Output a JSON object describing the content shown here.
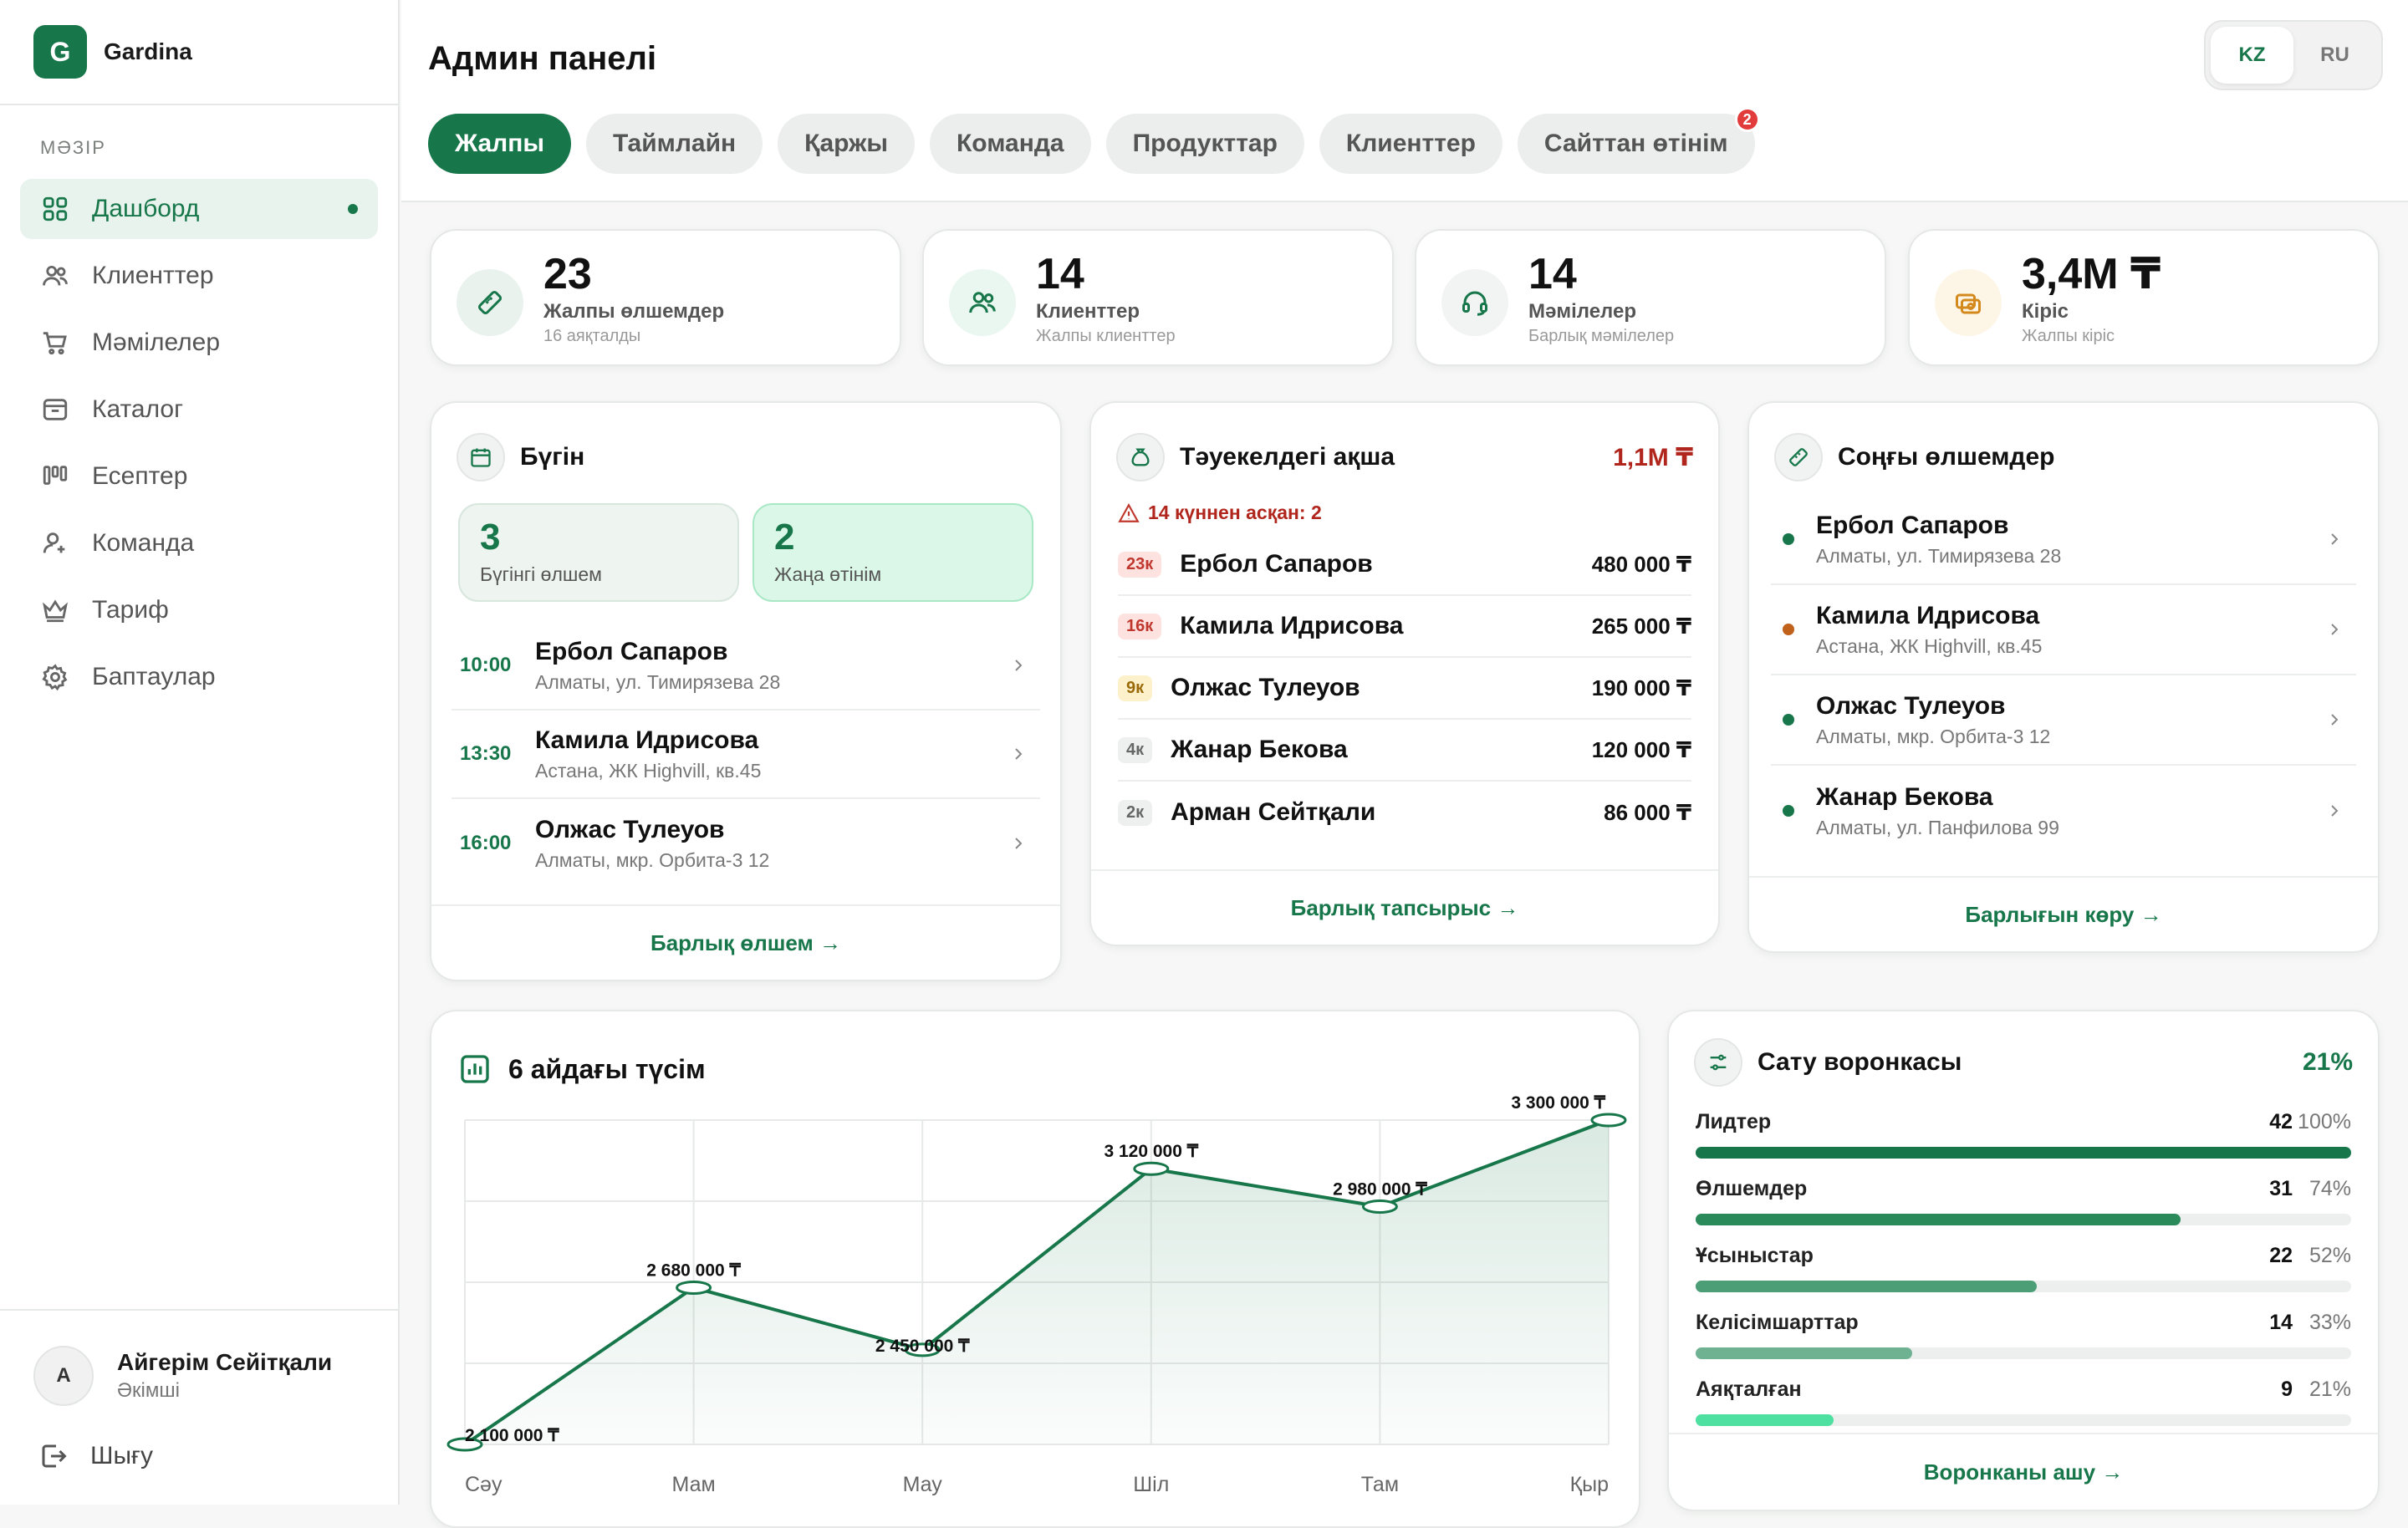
{
  "brand": {
    "initial": "G",
    "name": "Gardina"
  },
  "sidebar": {
    "caption": "МӘЗІР",
    "items": [
      {
        "label": "Дашборд",
        "icon": "dashboard-icon"
      },
      {
        "label": "Клиенттер",
        "icon": "users-icon"
      },
      {
        "label": "Мәмілелер",
        "icon": "cart-icon"
      },
      {
        "label": "Каталог",
        "icon": "catalog-icon"
      },
      {
        "label": "Есептер",
        "icon": "reports-icon"
      },
      {
        "label": "Команда",
        "icon": "team-icon"
      },
      {
        "label": "Тариф",
        "icon": "crown-icon"
      },
      {
        "label": "Баптаулар",
        "icon": "gear-icon"
      }
    ],
    "user": {
      "initial": "А",
      "name": "Айгерім Сейітқали",
      "role": "Әкімші"
    },
    "logout": "Шығу"
  },
  "header": {
    "title": "Админ панелі",
    "lang": [
      "KZ",
      "RU"
    ],
    "tabs": [
      {
        "label": "Жалпы"
      },
      {
        "label": "Таймлайн"
      },
      {
        "label": "Қаржы"
      },
      {
        "label": "Команда"
      },
      {
        "label": "Продукттар"
      },
      {
        "label": "Клиенттер"
      },
      {
        "label": "Сайттан өтінім",
        "badge": "2"
      }
    ]
  },
  "stats": [
    {
      "value": "23",
      "label": "Жалпы өлшемдер",
      "sub": "16 аяқталды",
      "icon": "ruler-icon"
    },
    {
      "value": "14",
      "label": "Клиенттер",
      "sub": "Жалпы клиенттер",
      "icon": "users-icon"
    },
    {
      "value": "14",
      "label": "Мәмілелер",
      "sub": "Барлық мәмілелер",
      "icon": "headset-icon"
    },
    {
      "value": "3,4M ₸",
      "label": "Кіріс",
      "sub": "Жалпы кіріс",
      "icon": "money-icon"
    }
  ],
  "today": {
    "title": "Бүгін",
    "boxes": [
      {
        "value": "3",
        "label": "Бүгінгі өлшем"
      },
      {
        "value": "2",
        "label": "Жаңа өтінім"
      }
    ],
    "rows": [
      {
        "time": "10:00",
        "name": "Ербол Сапаров",
        "addr": "Алматы, ул. Тимирязева 28"
      },
      {
        "time": "13:30",
        "name": "Камила Идрисова",
        "addr": "Астана, ЖК Highvill, кв.45"
      },
      {
        "time": "16:00",
        "name": "Олжас Тулеуов",
        "addr": "Алматы, мкр. Орбита-3 12"
      }
    ],
    "footer": "Барлық өлшем →"
  },
  "risk": {
    "title": "Тәуекелдегі ақша",
    "total": "1,1M ₸",
    "warning": "14 күннен асқан: 2",
    "rows": [
      {
        "badge": "23к",
        "name": "Ербол Сапаров",
        "amount": "480 000 ₸",
        "level": "high"
      },
      {
        "badge": "16к",
        "name": "Камила Идрисова",
        "amount": "265 000 ₸",
        "level": "high"
      },
      {
        "badge": "9к",
        "name": "Олжас Тулеуов",
        "amount": "190 000 ₸",
        "level": "mid"
      },
      {
        "badge": "4к",
        "name": "Жанар Бекова",
        "amount": "120 000 ₸",
        "level": "low"
      },
      {
        "badge": "2к",
        "name": "Арман Сейтқали",
        "amount": "86 000 ₸",
        "level": "low"
      }
    ],
    "footer": "Барлық тапсырыс →"
  },
  "recent": {
    "title": "Соңғы өлшемдер",
    "rows": [
      {
        "name": "Ербол Сапаров",
        "addr": "Алматы, ул. Тимирязева 28",
        "dot": "#17774a"
      },
      {
        "name": "Камила Идрисова",
        "addr": "Астана, ЖК Highvill, кв.45",
        "dot": "#c0621b"
      },
      {
        "name": "Олжас Тулеуов",
        "addr": "Алматы, мкр. Орбита-3 12",
        "dot": "#17774a"
      },
      {
        "name": "Жанар Бекова",
        "addr": "Алматы, ул. Панфилова 99",
        "dot": "#17774a"
      }
    ],
    "footer": "Барлығын көру →"
  },
  "revenue": {
    "title": "6 айдағы түсім"
  },
  "chart_data": {
    "type": "area",
    "title": "6 айдағы түсім",
    "categories": [
      "Сәу",
      "Мам",
      "Мау",
      "Шіл",
      "Там",
      "Қыр"
    ],
    "values": [
      2100000,
      2680000,
      2450000,
      3120000,
      2980000,
      3300000
    ],
    "value_labels": [
      "2 100 000 ₸",
      "2 680 000 ₸",
      "2 450 000 ₸",
      "3 120 000 ₸",
      "2 980 000 ₸",
      "3 300 000 ₸"
    ],
    "ylim": [
      2100000,
      3300000
    ],
    "grid": true,
    "color": "#17774a"
  },
  "funnel": {
    "title": "Сату воронкасы",
    "rate": "21%",
    "rows": [
      {
        "label": "Лидтер",
        "count": "42",
        "pct": "100%",
        "fraction": 1.0,
        "color": "#17774a"
      },
      {
        "label": "Өлшемдер",
        "count": "31",
        "pct": "74%",
        "fraction": 0.74,
        "color": "#2a8a5a"
      },
      {
        "label": "Ұсыныстар",
        "count": "22",
        "pct": "52%",
        "fraction": 0.52,
        "color": "#4c9e76"
      },
      {
        "label": "Келісімшарттар",
        "count": "14",
        "pct": "33%",
        "fraction": 0.33,
        "color": "#6fb292"
      },
      {
        "label": "Аяқталған",
        "count": "9",
        "pct": "21%",
        "fraction": 0.21,
        "color": "#4ee0a0"
      }
    ],
    "footer": "Воронканы ашу →"
  }
}
